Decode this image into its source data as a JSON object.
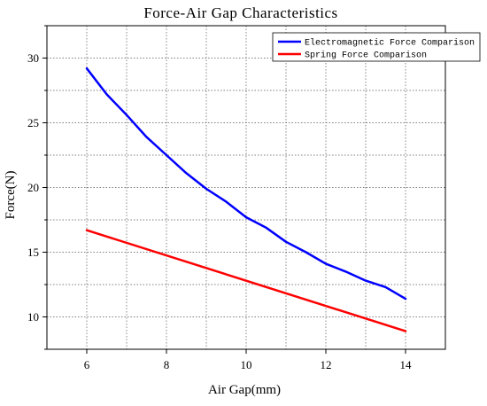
{
  "chart_data": {
    "type": "line",
    "title": "Force-Air Gap Characteristics",
    "xlabel": "Air Gap(mm)",
    "ylabel": "Force(N)",
    "xlim": [
      5,
      15
    ],
    "ylim": [
      7.5,
      32.5
    ],
    "x_ticks": [
      6,
      8,
      10,
      12,
      14
    ],
    "y_ticks": [
      10,
      15,
      20,
      25,
      30
    ],
    "grid": true,
    "grid_style": "dotted",
    "legend_position": "top-right",
    "series": [
      {
        "name": "Electromagnetic Force Comparison",
        "color": "#0000ff",
        "x": [
          6,
          6.5,
          7,
          7.5,
          8,
          8.5,
          9,
          9.5,
          10,
          10.5,
          11,
          11.5,
          12,
          12.5,
          13,
          13.5,
          14
        ],
        "values": [
          29.2,
          27.2,
          25.6,
          23.9,
          22.5,
          21.1,
          19.9,
          18.9,
          17.7,
          16.9,
          15.8,
          15.0,
          14.1,
          13.5,
          12.8,
          12.3,
          11.4
        ]
      },
      {
        "name": "Spring Force Comparison",
        "color": "#ff0000",
        "x": [
          6,
          14
        ],
        "values": [
          16.7,
          8.9
        ]
      }
    ]
  }
}
